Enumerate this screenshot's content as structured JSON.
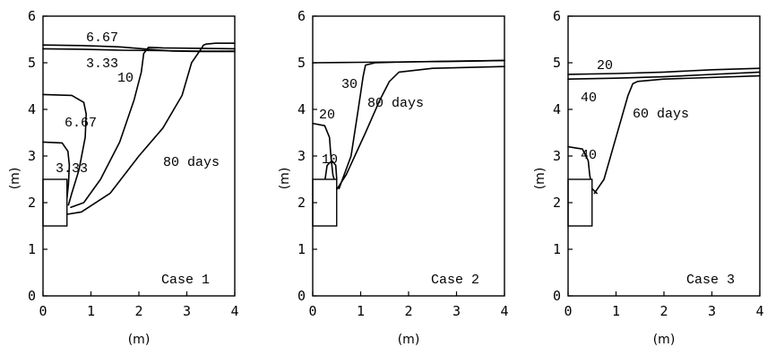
{
  "chart_data": [
    {
      "type": "line",
      "case_label": "Case 1",
      "xlabel": "(m)",
      "ylabel": "(m)",
      "xlim": [
        0,
        4
      ],
      "ylim": [
        0,
        6
      ],
      "xticks": [
        "0",
        "1",
        "2",
        "3",
        "4"
      ],
      "yticks": [
        "0",
        "1",
        "2",
        "3",
        "4",
        "5",
        "6"
      ],
      "block": {
        "x": [
          0,
          0.5
        ],
        "y": [
          1.5,
          2.5
        ]
      },
      "series": [
        {
          "label": "6.67",
          "x": [
            0,
            0.8,
            1.6,
            2.2,
            2.7,
            3.3,
            4.0
          ],
          "y": [
            5.38,
            5.37,
            5.34,
            5.29,
            5.25,
            5.24,
            5.24
          ]
        },
        {
          "label": "3.33",
          "x": [
            0,
            0.8,
            1.6,
            2.5,
            3.3,
            4.0
          ],
          "y": [
            5.3,
            5.29,
            5.27,
            5.26,
            5.25,
            5.25
          ]
        },
        {
          "label": "6.67",
          "x": [
            0,
            0.6,
            0.85,
            0.9,
            0.88,
            0.75,
            0.6,
            0.53
          ],
          "y": [
            4.32,
            4.3,
            4.15,
            3.9,
            3.4,
            2.7,
            2.2,
            1.95
          ]
        },
        {
          "label": "3.33",
          "x": [
            0,
            0.4,
            0.52,
            0.55,
            0.53,
            0.5
          ],
          "y": [
            3.3,
            3.28,
            3.1,
            2.8,
            2.4,
            2.1
          ]
        },
        {
          "label": "10",
          "x": [
            0.58,
            0.85,
            1.2,
            1.6,
            1.9,
            2.05,
            2.1,
            2.2,
            2.5,
            4.0
          ],
          "y": [
            1.9,
            2.0,
            2.5,
            3.3,
            4.2,
            4.8,
            5.2,
            5.33,
            5.32,
            5.3
          ]
        },
        {
          "label": "80 days",
          "x": [
            0.5,
            0.8,
            1.4,
            2.0,
            2.5,
            2.9,
            3.1,
            3.3,
            3.35,
            3.4,
            3.6,
            4.0
          ],
          "y": [
            1.75,
            1.8,
            2.2,
            3.0,
            3.6,
            4.3,
            5.0,
            5.3,
            5.38,
            5.4,
            5.42,
            5.42
          ]
        }
      ],
      "annotations": [
        "6.67",
        "3.33",
        "10",
        "6.67",
        "3.33",
        "80 days"
      ]
    },
    {
      "type": "line",
      "case_label": "Case 2",
      "xlabel": "(m)",
      "ylabel": "(m)",
      "xlim": [
        0,
        4
      ],
      "ylim": [
        0,
        6
      ],
      "xticks": [
        "0",
        "1",
        "2",
        "3",
        "4"
      ],
      "yticks": [
        "0",
        "1",
        "2",
        "3",
        "4",
        "5",
        "6"
      ],
      "block": {
        "x": [
          0,
          0.5
        ],
        "y": [
          1.5,
          2.5
        ]
      },
      "series": [
        {
          "label": "30",
          "x": [
            0.55,
            0.8,
            0.95,
            1.05,
            1.1,
            1.3,
            2.0,
            4.0
          ],
          "y": [
            2.3,
            3.0,
            4.0,
            4.7,
            4.95,
            5.0,
            5.02,
            5.05
          ]
        },
        {
          "label": "80 days",
          "x": [
            0.45,
            0.7,
            1.1,
            1.4,
            1.6,
            1.8,
            2.5,
            4.0
          ],
          "y": [
            2.2,
            2.6,
            3.5,
            4.2,
            4.6,
            4.8,
            4.88,
            4.92
          ]
        },
        {
          "label": "20",
          "x": [
            0,
            0.25,
            0.35,
            0.38,
            0.42,
            0.5
          ],
          "y": [
            3.7,
            3.65,
            3.4,
            3.0,
            2.6,
            2.3
          ]
        },
        {
          "label": "10",
          "x": [
            0.25,
            0.3,
            0.4,
            0.48,
            0.5
          ],
          "y": [
            2.45,
            2.8,
            2.9,
            2.8,
            2.5
          ]
        },
        {
          "label": "",
          "x": [
            0,
            1.0,
            2.0,
            3.0,
            4.0
          ],
          "y": [
            5.0,
            5.01,
            5.02,
            5.03,
            5.05
          ]
        }
      ],
      "annotations": [
        "30",
        "20",
        "80 days",
        "10"
      ]
    },
    {
      "type": "line",
      "case_label": "Case 3",
      "xlabel": "(m)",
      "ylabel": "(m)",
      "xlim": [
        0,
        4
      ],
      "ylim": [
        0,
        6
      ],
      "xticks": [
        "0",
        "1",
        "2",
        "3",
        "4"
      ],
      "yticks": [
        "0",
        "1",
        "2",
        "3",
        "4",
        "5",
        "6"
      ],
      "block": {
        "x": [
          0,
          0.5
        ],
        "y": [
          1.5,
          2.5
        ]
      },
      "series": [
        {
          "label": "20",
          "x": [
            0,
            1.0,
            2.0,
            3.0,
            4.0
          ],
          "y": [
            4.75,
            4.77,
            4.8,
            4.85,
            4.88
          ]
        },
        {
          "label": "40",
          "x": [
            0,
            1.0,
            2.0,
            3.0,
            4.0
          ],
          "y": [
            4.65,
            4.67,
            4.7,
            4.75,
            4.8
          ]
        },
        {
          "label": "60 days",
          "x": [
            0.55,
            0.75,
            1.0,
            1.25,
            1.35,
            1.45,
            2.0,
            4.0
          ],
          "y": [
            2.2,
            2.5,
            3.4,
            4.3,
            4.55,
            4.6,
            4.65,
            4.72
          ]
        },
        {
          "label": "40",
          "x": [
            0,
            0.3,
            0.42,
            0.45,
            0.5,
            0.6
          ],
          "y": [
            3.2,
            3.15,
            2.9,
            2.6,
            2.3,
            2.2
          ]
        }
      ],
      "annotations": [
        "20",
        "40",
        "60 days",
        "40"
      ]
    }
  ]
}
